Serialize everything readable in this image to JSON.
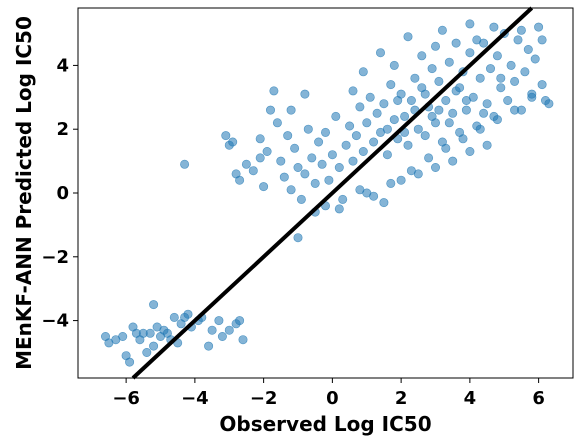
{
  "chart_data": {
    "type": "scatter",
    "title": "",
    "xlabel": "Observed Log IC50",
    "ylabel": "MEnKF-ANN Predicted Log IC50",
    "xlim": [
      -7.4,
      7.0
    ],
    "ylim": [
      -5.8,
      5.8
    ],
    "xticks": [
      -6,
      -4,
      -2,
      0,
      2,
      4,
      6
    ],
    "yticks": [
      -4,
      -2,
      0,
      2,
      4
    ],
    "xtick_labels": [
      "−6",
      "−4",
      "−2",
      "0",
      "2",
      "4",
      "6"
    ],
    "ytick_labels": [
      "−4",
      "−2",
      "0",
      "2",
      "4"
    ],
    "grid": false,
    "legend": "none",
    "point_color": "#1f77b4",
    "point_alpha": 0.55,
    "reference_line": {
      "slope": 1,
      "intercept": 0,
      "color": "#000000",
      "label": ""
    },
    "series": [
      {
        "points": [
          [
            -6.6,
            -4.5
          ],
          [
            -6.5,
            -4.7
          ],
          [
            -6.3,
            -4.6
          ],
          [
            -6.1,
            -4.5
          ],
          [
            -5.8,
            -4.2
          ],
          [
            -5.7,
            -4.4
          ],
          [
            -5.6,
            -4.6
          ],
          [
            -5.5,
            -4.4
          ],
          [
            -5.3,
            -4.4
          ],
          [
            -5.2,
            -3.5
          ],
          [
            -5.1,
            -4.2
          ],
          [
            -5.0,
            -4.5
          ],
          [
            -4.9,
            -4.3
          ],
          [
            -4.8,
            -4.4
          ],
          [
            -4.6,
            -3.9
          ],
          [
            -4.5,
            -4.7
          ],
          [
            -4.4,
            -4.1
          ],
          [
            -4.3,
            -3.9
          ],
          [
            -4.1,
            -4.2
          ],
          [
            -3.9,
            -4.0
          ],
          [
            -3.8,
            -3.9
          ],
          [
            -3.6,
            -4.8
          ],
          [
            -3.5,
            -4.3
          ],
          [
            -3.3,
            -4.0
          ],
          [
            -3.2,
            -4.5
          ],
          [
            -3.0,
            -4.3
          ],
          [
            -2.8,
            -4.1
          ],
          [
            -2.7,
            -4.0
          ],
          [
            -2.6,
            -4.6
          ],
          [
            -6.0,
            -5.1
          ],
          [
            -5.9,
            -5.3
          ],
          [
            -5.4,
            -5.0
          ],
          [
            -5.2,
            -4.8
          ],
          [
            -4.7,
            -4.6
          ],
          [
            -4.2,
            -3.8
          ],
          [
            -3.1,
            1.8
          ],
          [
            -3.0,
            1.5
          ],
          [
            -2.9,
            1.6
          ],
          [
            -2.8,
            0.6
          ],
          [
            -2.7,
            0.4
          ],
          [
            -2.5,
            0.9
          ],
          [
            -2.3,
            0.7
          ],
          [
            -2.1,
            1.1
          ],
          [
            -2.0,
            0.2
          ],
          [
            -1.9,
            1.3
          ],
          [
            -1.8,
            2.6
          ],
          [
            -1.7,
            3.2
          ],
          [
            -1.6,
            2.2
          ],
          [
            -1.5,
            1.0
          ],
          [
            -1.4,
            0.5
          ],
          [
            -1.3,
            1.8
          ],
          [
            -1.2,
            0.1
          ],
          [
            -1.1,
            1.4
          ],
          [
            -1.0,
            0.8
          ],
          [
            -0.9,
            -0.2
          ],
          [
            -0.8,
            0.6
          ],
          [
            -0.7,
            2.0
          ],
          [
            -0.6,
            1.1
          ],
          [
            -0.5,
            0.3
          ],
          [
            -0.4,
            1.6
          ],
          [
            -0.3,
            0.9
          ],
          [
            -0.2,
            1.9
          ],
          [
            -0.1,
            0.4
          ],
          [
            0.0,
            1.2
          ],
          [
            0.1,
            2.4
          ],
          [
            0.2,
            0.8
          ],
          [
            0.3,
            -0.2
          ],
          [
            0.4,
            1.5
          ],
          [
            0.5,
            2.1
          ],
          [
            0.6,
            1.0
          ],
          [
            0.7,
            1.8
          ],
          [
            0.8,
            2.7
          ],
          [
            0.9,
            1.3
          ],
          [
            1.0,
            2.2
          ],
          [
            1.1,
            3.0
          ],
          [
            1.2,
            1.6
          ],
          [
            1.3,
            2.5
          ],
          [
            1.4,
            1.9
          ],
          [
            1.5,
            2.8
          ],
          [
            1.6,
            1.2
          ],
          [
            1.7,
            3.4
          ],
          [
            1.8,
            2.3
          ],
          [
            1.9,
            1.7
          ],
          [
            2.0,
            3.1
          ],
          [
            2.1,
            2.4
          ],
          [
            2.2,
            1.5
          ],
          [
            2.3,
            2.9
          ],
          [
            2.4,
            3.6
          ],
          [
            2.5,
            2.0
          ],
          [
            2.6,
            3.3
          ],
          [
            2.7,
            1.8
          ],
          [
            2.8,
            2.7
          ],
          [
            2.9,
            3.9
          ],
          [
            3.0,
            2.2
          ],
          [
            3.1,
            3.5
          ],
          [
            3.2,
            1.6
          ],
          [
            3.3,
            2.9
          ],
          [
            3.4,
            4.1
          ],
          [
            3.5,
            2.5
          ],
          [
            3.6,
            3.2
          ],
          [
            3.7,
            1.9
          ],
          [
            3.8,
            3.8
          ],
          [
            3.9,
            2.6
          ],
          [
            4.0,
            4.4
          ],
          [
            4.1,
            3.0
          ],
          [
            4.2,
            2.1
          ],
          [
            4.3,
            3.6
          ],
          [
            4.4,
            4.7
          ],
          [
            4.5,
            2.8
          ],
          [
            4.6,
            3.9
          ],
          [
            4.7,
            2.4
          ],
          [
            4.8,
            4.3
          ],
          [
            4.9,
            3.3
          ],
          [
            5.0,
            5.0
          ],
          [
            5.1,
            2.9
          ],
          [
            5.2,
            4.0
          ],
          [
            5.3,
            3.5
          ],
          [
            5.4,
            4.8
          ],
          [
            5.5,
            2.6
          ],
          [
            5.6,
            3.8
          ],
          [
            5.7,
            4.5
          ],
          [
            5.8,
            3.1
          ],
          [
            5.9,
            4.2
          ],
          [
            6.0,
            5.2
          ],
          [
            6.1,
            3.4
          ],
          [
            6.2,
            2.9
          ],
          [
            6.3,
            2.8
          ],
          [
            1.4,
            4.4
          ],
          [
            2.2,
            4.9
          ],
          [
            3.0,
            4.6
          ],
          [
            4.0,
            5.3
          ],
          [
            3.2,
            5.1
          ],
          [
            2.6,
            4.3
          ],
          [
            1.8,
            4.0
          ],
          [
            0.9,
            3.8
          ],
          [
            0.6,
            3.2
          ],
          [
            -0.8,
            3.1
          ],
          [
            -1.2,
            2.6
          ],
          [
            -2.1,
            1.7
          ],
          [
            -4.3,
            0.9
          ],
          [
            1.0,
            0.0
          ],
          [
            1.5,
            -0.3
          ],
          [
            2.0,
            0.4
          ],
          [
            2.5,
            0.6
          ],
          [
            3.0,
            0.8
          ],
          [
            3.5,
            1.0
          ],
          [
            4.0,
            1.3
          ],
          [
            4.5,
            1.5
          ],
          [
            -0.5,
            -0.6
          ],
          [
            -1.0,
            -1.4
          ],
          [
            -0.2,
            -0.4
          ],
          [
            0.2,
            -0.5
          ],
          [
            0.8,
            0.1
          ],
          [
            1.2,
            -0.1
          ],
          [
            1.7,
            0.3
          ],
          [
            2.3,
            0.7
          ],
          [
            2.8,
            1.1
          ],
          [
            3.3,
            1.4
          ],
          [
            3.8,
            1.7
          ],
          [
            4.3,
            2.0
          ],
          [
            4.8,
            2.3
          ],
          [
            5.3,
            2.6
          ],
          [
            5.8,
            3.0
          ],
          [
            6.1,
            4.8
          ],
          [
            5.5,
            5.1
          ],
          [
            4.7,
            5.2
          ],
          [
            4.2,
            4.8
          ],
          [
            3.6,
            4.7
          ],
          [
            1.6,
            2.0
          ],
          [
            2.1,
            1.9
          ],
          [
            2.4,
            2.6
          ],
          [
            2.9,
            2.4
          ],
          [
            3.4,
            2.2
          ],
          [
            3.9,
            2.9
          ],
          [
            4.4,
            2.5
          ],
          [
            4.9,
            3.6
          ],
          [
            1.9,
            2.9
          ],
          [
            2.7,
            3.1
          ],
          [
            3.1,
            2.6
          ],
          [
            3.7,
            3.3
          ]
        ]
      }
    ]
  }
}
